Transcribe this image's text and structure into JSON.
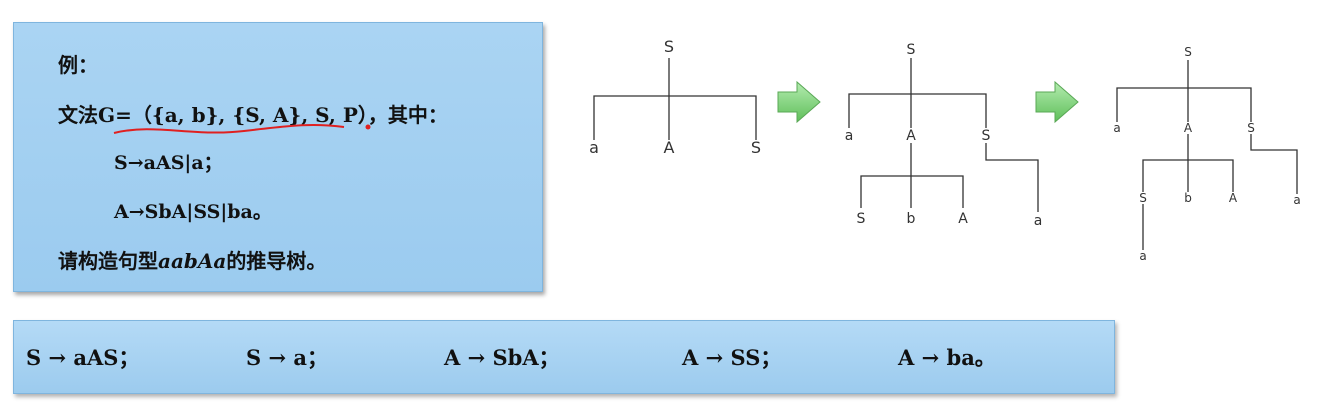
{
  "problem": {
    "example_label": "例：",
    "grammar_line": "文法G=（{a, b}, {S, A}, S, P），其中：",
    "rule_s": "S→aAS|a；",
    "rule_a": "A→SbA|SS|ba。",
    "task_prefix": "请构造句型",
    "task_sentence": "aabAa",
    "task_suffix": "的推导树。"
  },
  "rules": [
    "S →  aAS；",
    "S → a；",
    "A →  SbA；",
    "A → SS；",
    "A  → ba。"
  ],
  "trees": {
    "tree1": {
      "root": "S",
      "children": [
        "a",
        "A",
        "S"
      ]
    },
    "tree2": {
      "root": "S",
      "children": [
        "a",
        "A",
        "S"
      ],
      "a_children": [
        "S",
        "b",
        "A"
      ],
      "s_children": [
        "a"
      ]
    },
    "tree3": {
      "root": "S",
      "children": [
        "a",
        "A",
        "S"
      ],
      "a_children": [
        "S",
        "b",
        "A"
      ],
      "s_children": [
        "a"
      ],
      "s2_children": [
        "a"
      ]
    }
  },
  "colors": {
    "box": "#9bcbef",
    "arrow": "#7fd07a",
    "underline": "#e02020"
  }
}
